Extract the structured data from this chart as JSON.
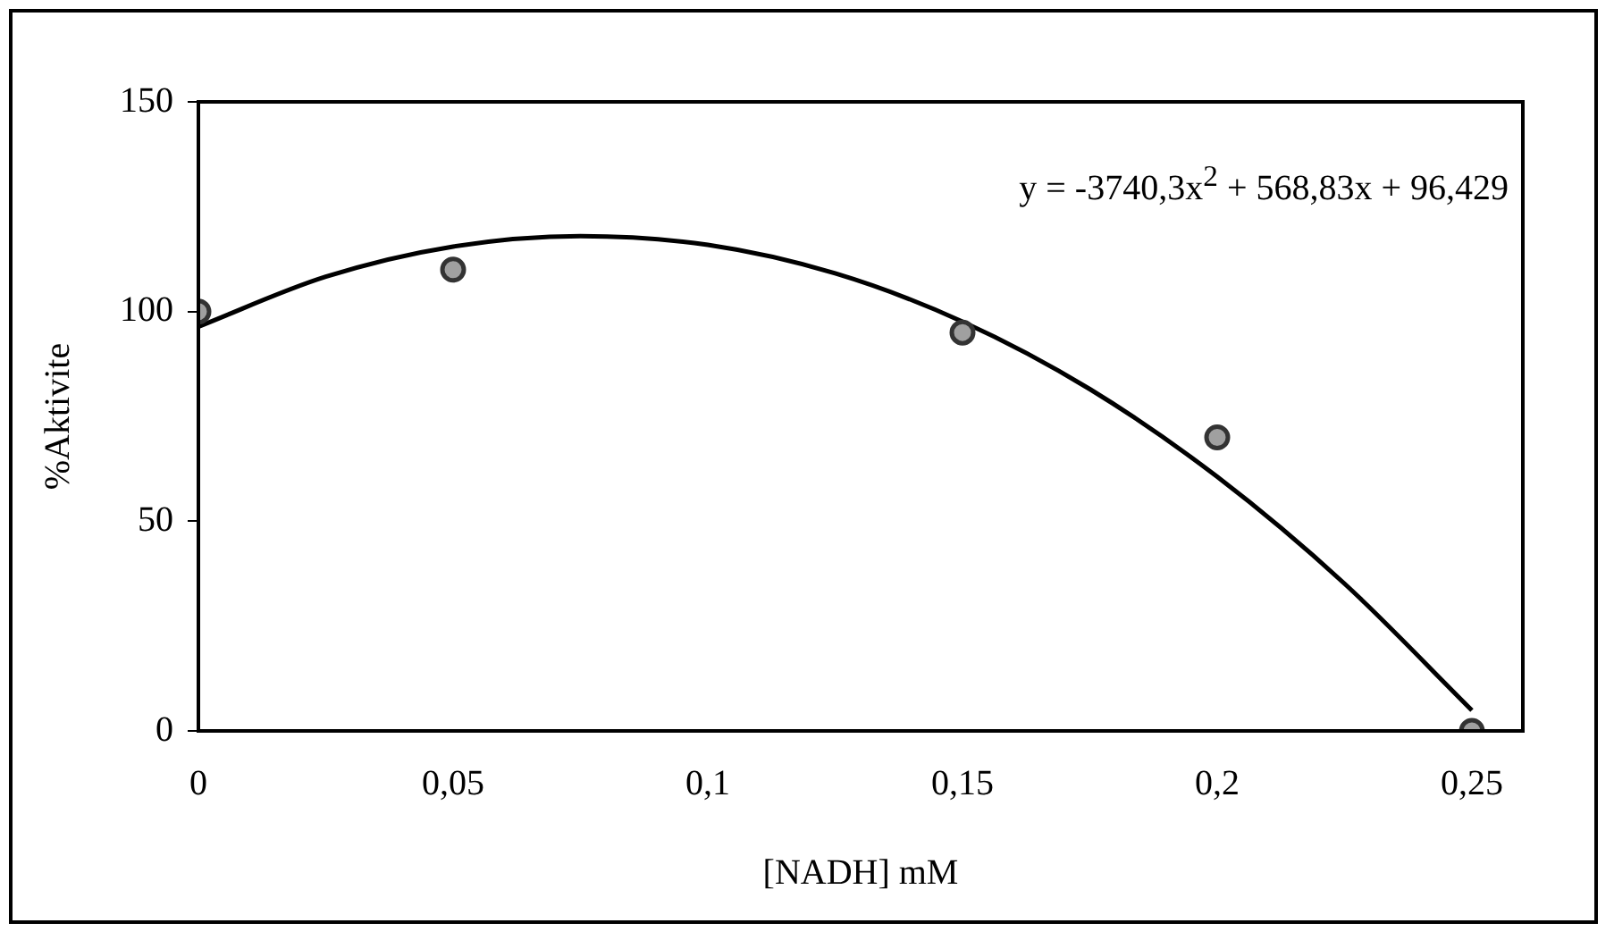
{
  "chart_data": {
    "type": "scatter",
    "xlabel": "[NADH] mM",
    "ylabel": "%Aktivite",
    "xlim": [
      0,
      0.26
    ],
    "xticks": [
      0,
      {
        "value": 0.05,
        "label": "0,05"
      },
      {
        "value": 0.1,
        "label": "0,1"
      },
      {
        "value": 0.15,
        "label": "0,15"
      },
      {
        "value": 0.2,
        "label": "0,2"
      },
      {
        "value": 0.25,
        "label": "0,25"
      }
    ],
    "ylim": [
      0,
      150
    ],
    "yticks": [
      0,
      50,
      100,
      150
    ],
    "grid": false,
    "legend": false,
    "marker": "circle",
    "annotations": [
      "y = -3740,3x$^{2}$ + 568,83x + 96,429"
    ],
    "series": [
      {
        "color": "#a0a0a0",
        "x": [
          0,
          0.05,
          0.15,
          0.2,
          0.25
        ],
        "values": [
          100,
          110,
          95,
          70,
          0
        ]
      },
      {
        "type": "line",
        "color": "#000000",
        "marker": "none",
        "x": [
          0,
          0.025,
          0.05,
          0.075,
          0.1,
          0.125,
          0.15,
          0.175,
          0.2,
          0.225,
          0.25
        ],
        "values": [
          96.4,
          108.3,
          115.5,
          118,
          115.9,
          109.1,
          97.6,
          81.5,
          60.6,
          35.1,
          4.9
        ]
      }
    ]
  }
}
